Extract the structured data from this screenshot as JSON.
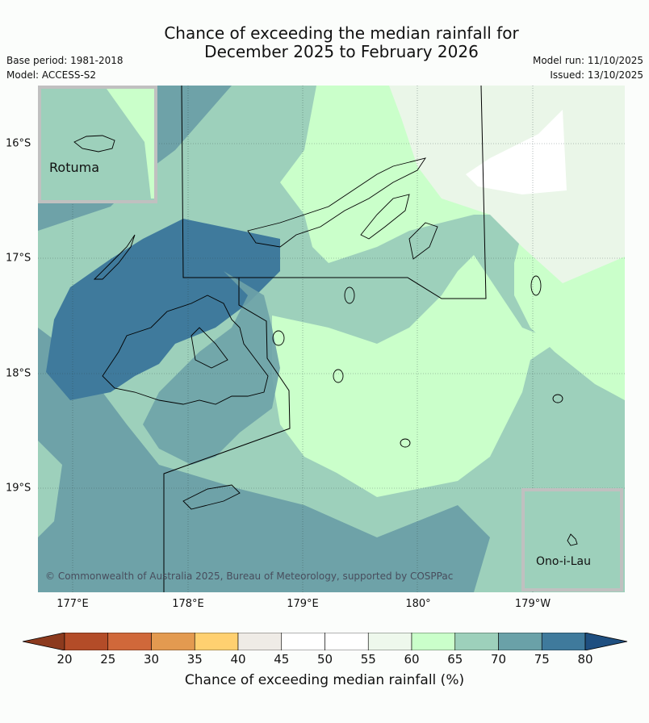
{
  "title_line1": "Chance of exceeding the median rainfall for",
  "title_line2": "December 2025 to February 2026",
  "base_period": "Base period: 1981-2018",
  "model": "Model: ACCESS-S2",
  "model_run": "Model run: 11/10/2025",
  "issued": "Issued: 13/10/2025",
  "longitude_labels": [
    "177°E",
    "178°E",
    "179°E",
    "180°",
    "179°W"
  ],
  "latitude_labels": [
    "16°S",
    "17°S",
    "18°S",
    "19°S"
  ],
  "inset_rotuma": "Rotuma",
  "inset_ono": "Ono-i-Lau",
  "copyright": "© Commonwealth of Australia 2025, Bureau of Meteorology, supported by COSPPac",
  "colorbar": {
    "label": "Chance of exceeding median rainfall (%)",
    "ticks": [
      "20",
      "25",
      "30",
      "35",
      "40",
      "45",
      "50",
      "55",
      "60",
      "65",
      "70",
      "75",
      "80"
    ],
    "colors": [
      "#8c3a1e",
      "#b34c28",
      "#d0683a",
      "#e39a50",
      "#ffd070",
      "#efebe6",
      "#ffffff",
      "#ffffff",
      "#eef8ec",
      "#caffca",
      "#9dd0bb",
      "#6aa1a8",
      "#3f7a9c",
      "#1f4f80"
    ]
  }
}
